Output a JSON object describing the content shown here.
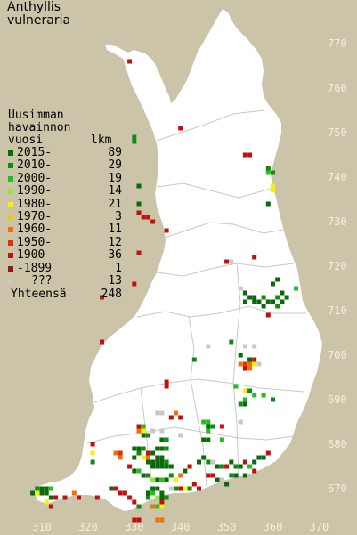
{
  "title": {
    "line1": "Anthyllis",
    "line2": "vulneraria"
  },
  "legend": {
    "heading_line1": "Uusimman",
    "heading_line2": "havainnon",
    "heading_line3": "vuosi",
    "count_header": "lkm",
    "items": [
      {
        "label": "2015-",
        "count": "89",
        "color": "#0a6a0a"
      },
      {
        "label": "2010-",
        "count": "29",
        "color": "#108a10"
      },
      {
        "label": "2000-",
        "count": "19",
        "color": "#20c020"
      },
      {
        "label": "1990-",
        "count": "14",
        "color": "#88ee30"
      },
      {
        "label": "1980-",
        "count": "21",
        "color": "#f4f400"
      },
      {
        "label": "1970-",
        "count": "3",
        "color": "#f0c800"
      },
      {
        "label": "1960-",
        "count": "11",
        "color": "#f07010"
      },
      {
        "label": "1950-",
        "count": "12",
        "color": "#e03010"
      },
      {
        "label": "1900-",
        "count": "36",
        "color": "#c01010"
      },
      {
        "label": "-1899",
        "count": "1",
        "color": "#901818"
      },
      {
        "label": "???",
        "count": "13",
        "color": "#c8c8c8"
      }
    ],
    "total_label": "Yhteensä",
    "total_count": "248"
  },
  "y_ticks": [
    "770",
    "760",
    "750",
    "740",
    "730",
    "720",
    "710",
    "700",
    "690",
    "680",
    "670"
  ],
  "x_ticks": [
    "310",
    "320",
    "330",
    "340",
    "350",
    "360",
    "370"
  ],
  "colors": {
    "background": "#cbc4a8",
    "land": "#ffffff",
    "borders": "#c8c8c8",
    "tick_text": "#f4f0dc"
  },
  "map_points": [
    {
      "e": 329,
      "n": 766,
      "c": 8
    },
    {
      "e": 340,
      "n": 751,
      "c": 8
    },
    {
      "e": 330,
      "n": 749,
      "c": 1
    },
    {
      "e": 330,
      "n": 748,
      "c": 1
    },
    {
      "e": 331,
      "n": 738,
      "c": 0
    },
    {
      "e": 331,
      "n": 734,
      "c": 0
    },
    {
      "e": 331,
      "n": 732,
      "c": 8
    },
    {
      "e": 332,
      "n": 731,
      "c": 8
    },
    {
      "e": 333,
      "n": 731,
      "c": 8
    },
    {
      "e": 334,
      "n": 730,
      "c": 8
    },
    {
      "e": 331,
      "n": 723,
      "c": 8
    },
    {
      "e": 337,
      "n": 728,
      "c": 8
    },
    {
      "e": 350,
      "n": 721,
      "c": 8
    },
    {
      "e": 351,
      "n": 721,
      "c": 10
    },
    {
      "e": 330,
      "n": 716,
      "c": 8
    },
    {
      "e": 323,
      "n": 713,
      "c": 8
    },
    {
      "e": 354,
      "n": 745,
      "c": 8
    },
    {
      "e": 355,
      "n": 745,
      "c": 8
    },
    {
      "e": 359,
      "n": 742,
      "c": 1
    },
    {
      "e": 360,
      "n": 741,
      "c": 1
    },
    {
      "e": 359,
      "n": 741,
      "c": 2
    },
    {
      "e": 360,
      "n": 738,
      "c": 4
    },
    {
      "e": 360,
      "n": 737,
      "c": 4
    },
    {
      "e": 359,
      "n": 734,
      "c": 0
    },
    {
      "e": 356,
      "n": 722,
      "c": 8
    },
    {
      "e": 361,
      "n": 717,
      "c": 0
    },
    {
      "e": 353,
      "n": 715,
      "c": 10
    },
    {
      "e": 354,
      "n": 714,
      "c": 0
    },
    {
      "e": 355,
      "n": 713,
      "c": 0
    },
    {
      "e": 356,
      "n": 713,
      "c": 0
    },
    {
      "e": 357,
      "n": 712,
      "c": 0
    },
    {
      "e": 358,
      "n": 713,
      "c": 1
    },
    {
      "e": 359,
      "n": 712,
      "c": 0
    },
    {
      "e": 360,
      "n": 712,
      "c": 0
    },
    {
      "e": 361,
      "n": 713,
      "c": 1
    },
    {
      "e": 362,
      "n": 712,
      "c": 0
    },
    {
      "e": 363,
      "n": 713,
      "c": 0
    },
    {
      "e": 362,
      "n": 714,
      "c": 0
    },
    {
      "e": 360,
      "n": 716,
      "c": 0
    },
    {
      "e": 354,
      "n": 712,
      "c": 0
    },
    {
      "e": 356,
      "n": 712,
      "c": 0
    },
    {
      "e": 358,
      "n": 711,
      "c": 0
    },
    {
      "e": 361,
      "n": 711,
      "c": 1
    },
    {
      "e": 365,
      "n": 715,
      "c": 2
    },
    {
      "e": 359,
      "n": 709,
      "c": 8
    },
    {
      "e": 346,
      "n": 702,
      "c": 10
    },
    {
      "e": 351,
      "n": 703,
      "c": 1
    },
    {
      "e": 354,
      "n": 702,
      "c": 10
    },
    {
      "e": 356,
      "n": 702,
      "c": 10
    },
    {
      "e": 353,
      "n": 700,
      "c": 0
    },
    {
      "e": 355,
      "n": 699,
      "c": 0
    },
    {
      "e": 356,
      "n": 699,
      "c": 8
    },
    {
      "e": 353,
      "n": 698,
      "c": 6
    },
    {
      "e": 354,
      "n": 698,
      "c": 7
    },
    {
      "e": 355,
      "n": 698,
      "c": 6
    },
    {
      "e": 356,
      "n": 698,
      "c": 4
    },
    {
      "e": 354,
      "n": 697,
      "c": 8
    },
    {
      "e": 355,
      "n": 697,
      "c": 6
    },
    {
      "e": 357,
      "n": 698,
      "c": 10
    },
    {
      "e": 343,
      "n": 699,
      "c": 1
    },
    {
      "e": 323,
      "n": 703,
      "c": 8
    },
    {
      "e": 352,
      "n": 693,
      "c": 2
    },
    {
      "e": 354,
      "n": 692,
      "c": 4
    },
    {
      "e": 355,
      "n": 692,
      "c": 1
    },
    {
      "e": 356,
      "n": 691,
      "c": 2
    },
    {
      "e": 354,
      "n": 690,
      "c": 2
    },
    {
      "e": 354,
      "n": 689,
      "c": 0
    },
    {
      "e": 353,
      "n": 689,
      "c": 1
    },
    {
      "e": 358,
      "n": 691,
      "c": 2
    },
    {
      "e": 360,
      "n": 690,
      "c": 1
    },
    {
      "e": 337,
      "n": 694,
      "c": 8
    },
    {
      "e": 337,
      "n": 693,
      "c": 8
    },
    {
      "e": 340,
      "n": 686,
      "c": 8
    },
    {
      "e": 331,
      "n": 684,
      "c": 8
    },
    {
      "e": 331,
      "n": 683,
      "c": 6
    },
    {
      "e": 332,
      "n": 683,
      "c": 4
    },
    {
      "e": 332,
      "n": 684,
      "c": 2
    },
    {
      "e": 332,
      "n": 682,
      "c": 0
    },
    {
      "e": 333,
      "n": 682,
      "c": 1
    },
    {
      "e": 334,
      "n": 683,
      "c": 10
    },
    {
      "e": 336,
      "n": 683,
      "c": 10
    },
    {
      "e": 336,
      "n": 681,
      "c": 0
    },
    {
      "e": 337,
      "n": 681,
      "c": 1
    },
    {
      "e": 340,
      "n": 682,
      "c": 10
    },
    {
      "e": 345,
      "n": 685,
      "c": 2
    },
    {
      "e": 346,
      "n": 685,
      "c": 2
    },
    {
      "e": 346,
      "n": 684,
      "c": 0
    },
    {
      "e": 347,
      "n": 684,
      "c": 1
    },
    {
      "e": 346,
      "n": 683,
      "c": 2
    },
    {
      "e": 345,
      "n": 681,
      "c": 0
    },
    {
      "e": 346,
      "n": 681,
      "c": 0
    },
    {
      "e": 349,
      "n": 684,
      "c": 8
    },
    {
      "e": 353,
      "n": 685,
      "c": 10
    },
    {
      "e": 349,
      "n": 681,
      "c": 2
    },
    {
      "e": 321,
      "n": 680,
      "c": 8
    },
    {
      "e": 321,
      "n": 678,
      "c": 4
    },
    {
      "e": 321,
      "n": 676,
      "c": 1
    },
    {
      "e": 326,
      "n": 678,
      "c": 6
    },
    {
      "e": 327,
      "n": 677,
      "c": 6
    },
    {
      "e": 327,
      "n": 678,
      "c": 7
    },
    {
      "e": 330,
      "n": 679,
      "c": 0
    },
    {
      "e": 331,
      "n": 679,
      "c": 0
    },
    {
      "e": 332,
      "n": 679,
      "c": 1
    },
    {
      "e": 333,
      "n": 678,
      "c": 8
    },
    {
      "e": 330,
      "n": 677,
      "c": 0
    },
    {
      "e": 331,
      "n": 678,
      "c": 1
    },
    {
      "e": 332,
      "n": 677,
      "c": 4
    },
    {
      "e": 333,
      "n": 677,
      "c": 6
    },
    {
      "e": 334,
      "n": 678,
      "c": 0
    },
    {
      "e": 335,
      "n": 679,
      "c": 0
    },
    {
      "e": 336,
      "n": 679,
      "c": 0
    },
    {
      "e": 337,
      "n": 679,
      "c": 1
    },
    {
      "e": 333,
      "n": 676,
      "c": 0
    },
    {
      "e": 334,
      "n": 676,
      "c": 0
    },
    {
      "e": 335,
      "n": 676,
      "c": 0
    },
    {
      "e": 336,
      "n": 676,
      "c": 0
    },
    {
      "e": 334,
      "n": 675,
      "c": 0
    },
    {
      "e": 335,
      "n": 675,
      "c": 0
    },
    {
      "e": 336,
      "n": 675,
      "c": 0
    },
    {
      "e": 337,
      "n": 675,
      "c": 0
    },
    {
      "e": 338,
      "n": 675,
      "c": 0
    },
    {
      "e": 335,
      "n": 677,
      "c": 0
    },
    {
      "e": 336,
      "n": 677,
      "c": 0
    },
    {
      "e": 337,
      "n": 676,
      "c": 1
    },
    {
      "e": 329,
      "n": 675,
      "c": 8
    },
    {
      "e": 330,
      "n": 674,
      "c": 0
    },
    {
      "e": 331,
      "n": 674,
      "c": 2
    },
    {
      "e": 332,
      "n": 673,
      "c": 0
    },
    {
      "e": 333,
      "n": 673,
      "c": 1
    },
    {
      "e": 334,
      "n": 672,
      "c": 3
    },
    {
      "e": 335,
      "n": 672,
      "c": 0
    },
    {
      "e": 336,
      "n": 672,
      "c": 2
    },
    {
      "e": 337,
      "n": 672,
      "c": 0
    },
    {
      "e": 338,
      "n": 673,
      "c": 1
    },
    {
      "e": 339,
      "n": 672,
      "c": 4
    },
    {
      "e": 340,
      "n": 673,
      "c": 6
    },
    {
      "e": 341,
      "n": 674,
      "c": 0
    },
    {
      "e": 342,
      "n": 675,
      "c": 8
    },
    {
      "e": 344,
      "n": 676,
      "c": 0
    },
    {
      "e": 345,
      "n": 677,
      "c": 0
    },
    {
      "e": 346,
      "n": 676,
      "c": 1
    },
    {
      "e": 347,
      "n": 676,
      "c": 10
    },
    {
      "e": 348,
      "n": 675,
      "c": 0
    },
    {
      "e": 349,
      "n": 675,
      "c": 1
    },
    {
      "e": 350,
      "n": 675,
      "c": 8
    },
    {
      "e": 351,
      "n": 676,
      "c": 0
    },
    {
      "e": 352,
      "n": 675,
      "c": 1
    },
    {
      "e": 353,
      "n": 675,
      "c": 0
    },
    {
      "e": 354,
      "n": 676,
      "c": 8
    },
    {
      "e": 355,
      "n": 675,
      "c": 2
    },
    {
      "e": 356,
      "n": 676,
      "c": 0
    },
    {
      "e": 357,
      "n": 677,
      "c": 0
    },
    {
      "e": 358,
      "n": 677,
      "c": 0
    },
    {
      "e": 359,
      "n": 678,
      "c": 8
    },
    {
      "e": 356,
      "n": 674,
      "c": 8
    },
    {
      "e": 354,
      "n": 673,
      "c": 0
    },
    {
      "e": 351,
      "n": 673,
      "c": 1
    },
    {
      "e": 352,
      "n": 673,
      "c": 0
    },
    {
      "e": 346,
      "n": 673,
      "c": 8
    },
    {
      "e": 347,
      "n": 673,
      "c": 8
    },
    {
      "e": 348,
      "n": 672,
      "c": 0
    },
    {
      "e": 349,
      "n": 672,
      "c": 10
    },
    {
      "e": 350,
      "n": 671,
      "c": 0
    },
    {
      "e": 343,
      "n": 671,
      "c": 8
    },
    {
      "e": 344,
      "n": 670,
      "c": 8
    },
    {
      "e": 341,
      "n": 670,
      "c": 4
    },
    {
      "e": 342,
      "n": 670,
      "c": 1
    },
    {
      "e": 338,
      "n": 670,
      "c": 10
    },
    {
      "e": 339,
      "n": 670,
      "c": 1
    },
    {
      "e": 340,
      "n": 670,
      "c": 8
    },
    {
      "e": 334,
      "n": 670,
      "c": 0
    },
    {
      "e": 335,
      "n": 670,
      "c": 0
    },
    {
      "e": 336,
      "n": 669,
      "c": 0
    },
    {
      "e": 333,
      "n": 669,
      "c": 0
    },
    {
      "e": 334,
      "n": 669,
      "c": 2
    },
    {
      "e": 333,
      "n": 668,
      "c": 1
    },
    {
      "e": 335,
      "n": 668,
      "c": 3
    },
    {
      "e": 336,
      "n": 668,
      "c": 0
    },
    {
      "e": 337,
      "n": 668,
      "c": 1
    },
    {
      "e": 336,
      "n": 667,
      "c": 8
    },
    {
      "e": 334,
      "n": 666,
      "c": 6
    },
    {
      "e": 335,
      "n": 666,
      "c": 2
    },
    {
      "e": 336,
      "n": 666,
      "c": 4
    },
    {
      "e": 330,
      "n": 667,
      "c": 8
    },
    {
      "e": 331,
      "n": 666,
      "c": 1
    },
    {
      "e": 327,
      "n": 669,
      "c": 8
    },
    {
      "e": 328,
      "n": 669,
      "c": 8
    },
    {
      "e": 329,
      "n": 668,
      "c": 8
    },
    {
      "e": 325,
      "n": 670,
      "c": 0
    },
    {
      "e": 326,
      "n": 670,
      "c": 8
    },
    {
      "e": 330,
      "n": 663,
      "c": 8
    },
    {
      "e": 331,
      "n": 663,
      "c": 8
    },
    {
      "e": 335,
      "n": 663,
      "c": 6
    },
    {
      "e": 336,
      "n": 663,
      "c": 6
    },
    {
      "e": 309,
      "n": 670,
      "c": 1
    },
    {
      "e": 310,
      "n": 670,
      "c": 0
    },
    {
      "e": 311,
      "n": 670,
      "c": 0
    },
    {
      "e": 312,
      "n": 670,
      "c": 2
    },
    {
      "e": 308,
      "n": 669,
      "c": 0
    },
    {
      "e": 309,
      "n": 669,
      "c": 4
    },
    {
      "e": 310,
      "n": 669,
      "c": 0
    },
    {
      "e": 311,
      "n": 669,
      "c": 0
    },
    {
      "e": 312,
      "n": 668,
      "c": 0
    },
    {
      "e": 313,
      "n": 668,
      "c": 8
    },
    {
      "e": 315,
      "n": 668,
      "c": 8
    },
    {
      "e": 311,
      "n": 667,
      "c": 4
    },
    {
      "e": 316,
      "n": 667,
      "c": 10
    },
    {
      "e": 317,
      "n": 669,
      "c": 6
    },
    {
      "e": 318,
      "n": 668,
      "c": 8
    },
    {
      "e": 322,
      "n": 668,
      "c": 8
    },
    {
      "e": 312,
      "n": 666,
      "c": 8
    },
    {
      "e": 335,
      "n": 687,
      "c": 10
    },
    {
      "e": 336,
      "n": 687,
      "c": 10
    },
    {
      "e": 338,
      "n": 686,
      "c": 8
    },
    {
      "e": 339,
      "n": 687,
      "c": 6
    }
  ]
}
